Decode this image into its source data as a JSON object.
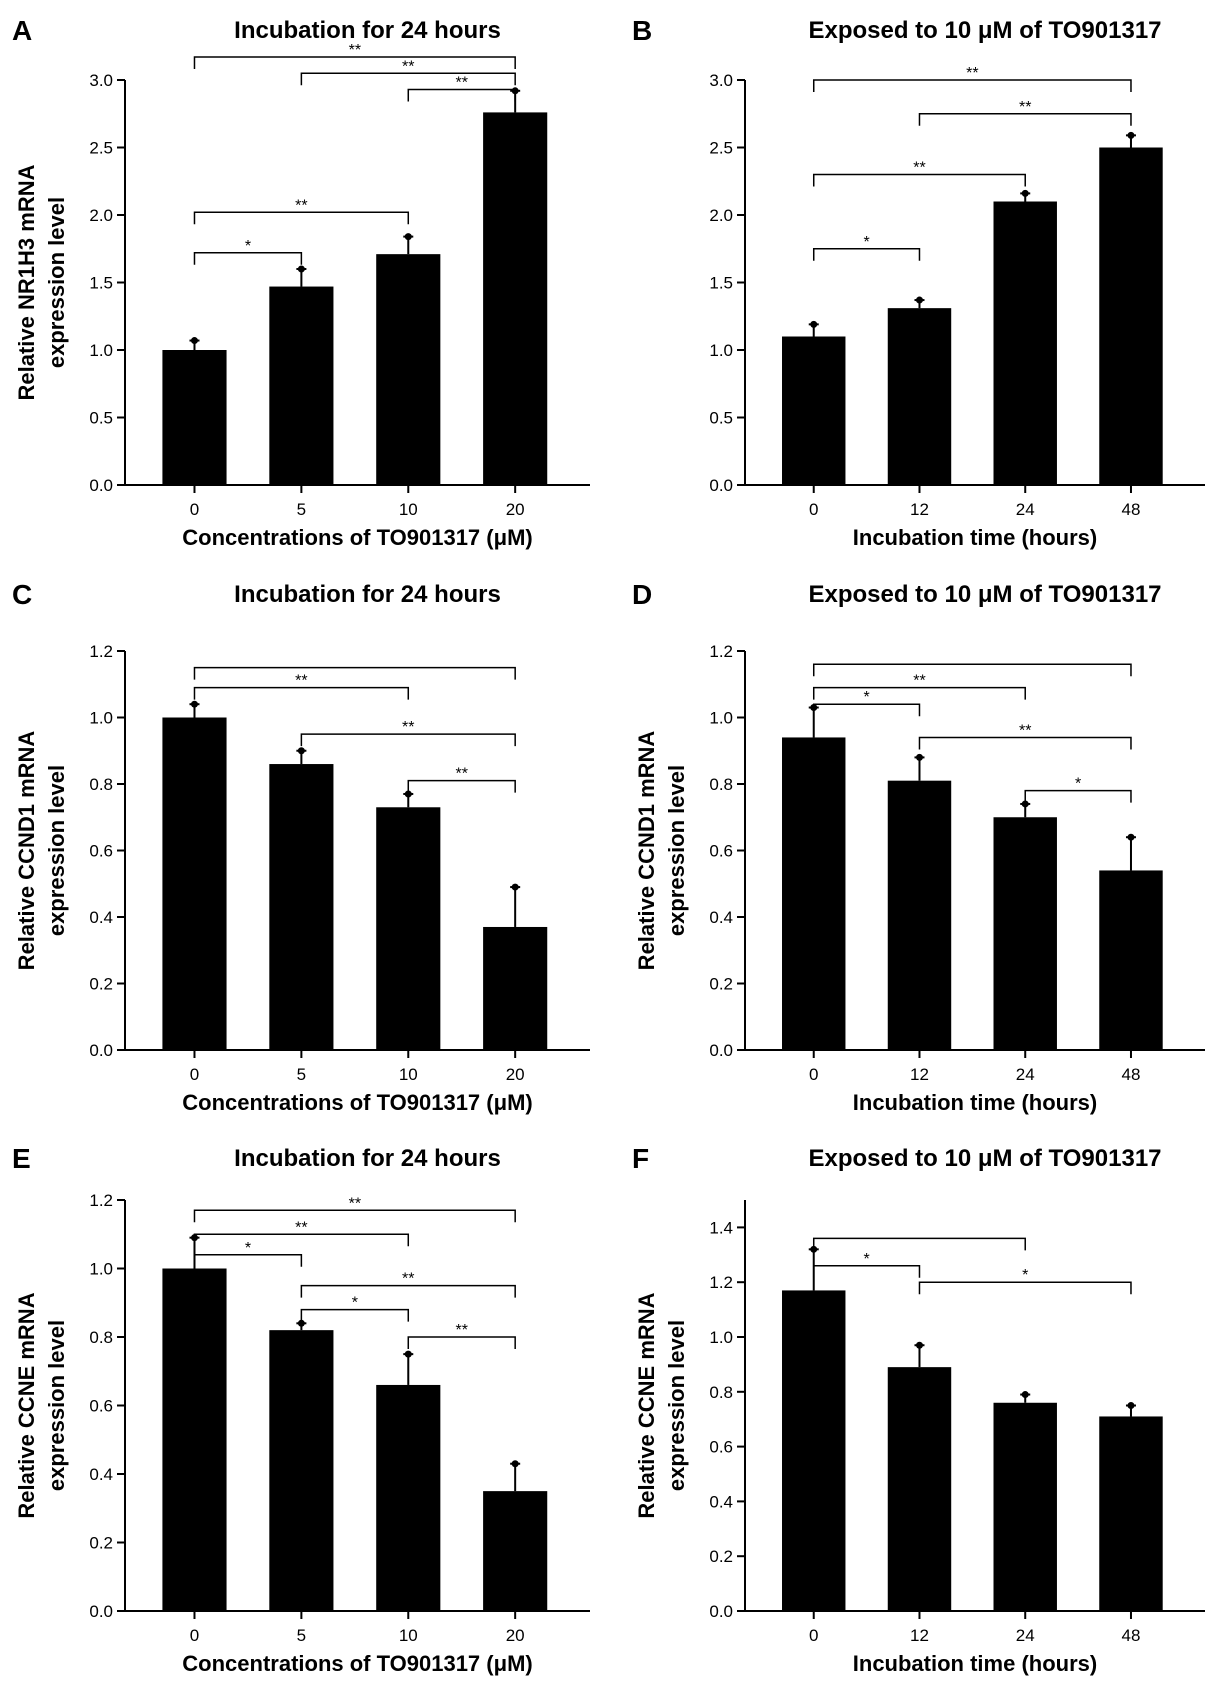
{
  "chart_data": [
    {
      "panel_label": "A",
      "type": "bar",
      "title": "Incubation for 24 hours",
      "xlabel": "Concentrations of TO901317 (μM)",
      "ylabel": "Relative NR1H3 mRNA expression level",
      "ylabel_lines": [
        "Relative NR1H3 mRNA",
        "expression level"
      ],
      "categories": [
        "0",
        "5",
        "10",
        "20"
      ],
      "values": [
        1.0,
        1.47,
        1.71,
        2.76
      ],
      "errors": [
        0.07,
        0.13,
        0.13,
        0.16
      ],
      "ylim": [
        0,
        3.0
      ],
      "yticks": [
        "0.0",
        "0.5",
        "1.0",
        "1.5",
        "2.0",
        "2.5",
        "3.0"
      ],
      "bar_color": "#000000",
      "grid": false,
      "significance": [
        {
          "from": 0,
          "to": 1,
          "label": "*",
          "y": 1.72
        },
        {
          "from": 0,
          "to": 2,
          "label": "**",
          "y": 2.02
        },
        {
          "from": 2,
          "to": 3,
          "label": "**",
          "y": 2.93
        },
        {
          "from": 1,
          "to": 3,
          "label": "**",
          "y": 3.05
        },
        {
          "from": 0,
          "to": 3,
          "label": "**",
          "y": 3.17
        }
      ]
    },
    {
      "panel_label": "B",
      "type": "bar",
      "title": "Exposed to 10 μM of TO901317",
      "xlabel": "Incubation time (hours)",
      "ylabel": "",
      "ylabel_lines": [],
      "categories": [
        "0",
        "12",
        "24",
        "48"
      ],
      "values": [
        1.1,
        1.31,
        2.1,
        2.5
      ],
      "errors": [
        0.09,
        0.06,
        0.06,
        0.09
      ],
      "ylim": [
        0,
        3.0
      ],
      "yticks": [
        "0.0",
        "0.5",
        "1.0",
        "1.5",
        "2.0",
        "2.5",
        "3.0"
      ],
      "bar_color": "#000000",
      "grid": false,
      "significance": [
        {
          "from": 0,
          "to": 1,
          "label": "*",
          "y": 1.75
        },
        {
          "from": 0,
          "to": 2,
          "label": "**",
          "y": 2.3
        },
        {
          "from": 1,
          "to": 3,
          "label": "**",
          "y": 2.75
        },
        {
          "from": 0,
          "to": 3,
          "label": "**",
          "y": 3.0
        }
      ]
    },
    {
      "panel_label": "C",
      "type": "bar",
      "title": "Incubation for 24 hours",
      "xlabel": "Concentrations of TO901317 (μM)",
      "ylabel": "Relative CCND1 mRNA expression level",
      "ylabel_lines": [
        "Relative CCND1 mRNA",
        "expression level"
      ],
      "categories": [
        "0",
        "5",
        "10",
        "20"
      ],
      "values": [
        1.0,
        0.86,
        0.73,
        0.37
      ],
      "errors": [
        0.04,
        0.04,
        0.04,
        0.12
      ],
      "ylim": [
        0,
        1.2
      ],
      "yticks": [
        "0.0",
        "0.2",
        "0.4",
        "0.6",
        "0.8",
        "1.0",
        "1.2"
      ],
      "bar_color": "#000000",
      "grid": false,
      "significance": [
        {
          "from": 2,
          "to": 3,
          "label": "**",
          "y": 0.81
        },
        {
          "from": 1,
          "to": 3,
          "label": "**",
          "y": 0.95
        },
        {
          "from": 0,
          "to": 2,
          "label": "**",
          "y": 1.09
        },
        {
          "from": 0,
          "to": 3,
          "label": "",
          "y": 1.15
        }
      ]
    },
    {
      "panel_label": "D",
      "type": "bar",
      "title": "Exposed to 10 μM of TO901317",
      "xlabel": "Incubation time (hours)",
      "ylabel": "Relative CCND1 mRNA expression level",
      "ylabel_lines": [
        "Relative CCND1 mRNA",
        "expression level"
      ],
      "categories": [
        "0",
        "12",
        "24",
        "48"
      ],
      "values": [
        0.94,
        0.81,
        0.7,
        0.54
      ],
      "errors": [
        0.09,
        0.07,
        0.04,
        0.1
      ],
      "ylim": [
        0,
        1.2
      ],
      "yticks": [
        "0.0",
        "0.2",
        "0.4",
        "0.6",
        "0.8",
        "1.0",
        "1.2"
      ],
      "bar_color": "#000000",
      "grid": false,
      "significance": [
        {
          "from": 2,
          "to": 3,
          "label": "*",
          "y": 0.78
        },
        {
          "from": 1,
          "to": 3,
          "label": "**",
          "y": 0.94
        },
        {
          "from": 0,
          "to": 1,
          "label": "*",
          "y": 1.04
        },
        {
          "from": 0,
          "to": 2,
          "label": "**",
          "y": 1.09
        },
        {
          "from": 0,
          "to": 3,
          "label": "",
          "y": 1.16
        }
      ]
    },
    {
      "panel_label": "E",
      "type": "bar",
      "title": "Incubation for 24 hours",
      "xlabel": "Concentrations of TO901317 (μM)",
      "ylabel": "Relative CCNE mRNA expression level",
      "ylabel_lines": [
        "Relative CCNE mRNA",
        "expression level"
      ],
      "categories": [
        "0",
        "5",
        "10",
        "20"
      ],
      "values": [
        1.0,
        0.82,
        0.66,
        0.35
      ],
      "errors": [
        0.09,
        0.02,
        0.09,
        0.08
      ],
      "ylim": [
        0,
        1.2
      ],
      "yticks": [
        "0.0",
        "0.2",
        "0.4",
        "0.6",
        "0.8",
        "1.0",
        "1.2"
      ],
      "bar_color": "#000000",
      "grid": false,
      "significance": [
        {
          "from": 2,
          "to": 3,
          "label": "**",
          "y": 0.8
        },
        {
          "from": 1,
          "to": 2,
          "label": "*",
          "y": 0.88
        },
        {
          "from": 1,
          "to": 3,
          "label": "**",
          "y": 0.95
        },
        {
          "from": 0,
          "to": 1,
          "label": "*",
          "y": 1.04
        },
        {
          "from": 0,
          "to": 2,
          "label": "**",
          "y": 1.1
        },
        {
          "from": 0,
          "to": 3,
          "label": "**",
          "y": 1.17
        }
      ]
    },
    {
      "panel_label": "F",
      "type": "bar",
      "title": "Exposed to 10 μM of TO901317",
      "xlabel": "Incubation time (hours)",
      "ylabel": "Relative CCNE mRNA expression level",
      "ylabel_lines": [
        "Relative CCNE mRNA",
        "expression level"
      ],
      "categories": [
        "0",
        "12",
        "24",
        "48"
      ],
      "values": [
        1.17,
        0.89,
        0.76,
        0.71
      ],
      "errors": [
        0.15,
        0.08,
        0.03,
        0.04
      ],
      "ylim": [
        0,
        1.5
      ],
      "yticks": [
        "0.0",
        "0.2",
        "0.4",
        "0.6",
        "0.8",
        "1.0",
        "1.2",
        "1.4"
      ],
      "bar_color": "#000000",
      "grid": false,
      "significance": [
        {
          "from": 1,
          "to": 3,
          "label": "*",
          "y": 1.2
        },
        {
          "from": 0,
          "to": 1,
          "label": "*",
          "y": 1.26
        },
        {
          "from": 0,
          "to": 2,
          "label": "",
          "y": 1.36
        }
      ]
    }
  ]
}
